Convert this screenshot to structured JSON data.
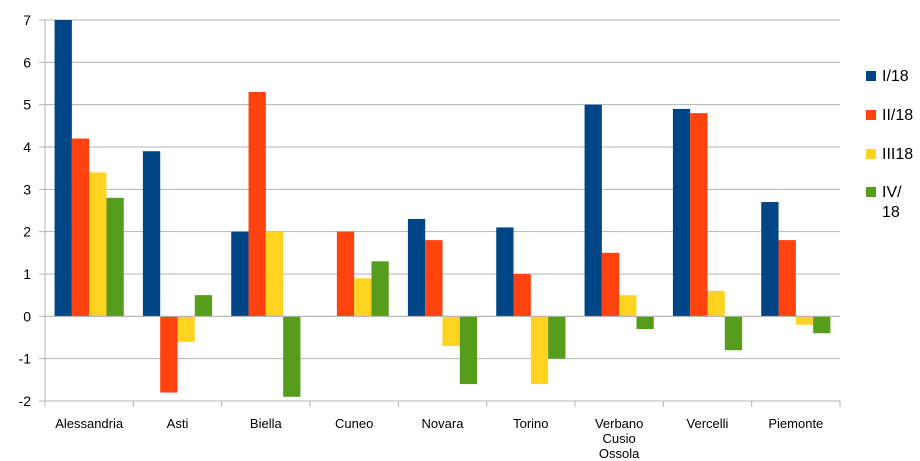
{
  "chart_data": {
    "type": "bar",
    "categories": [
      "Alessandria",
      "Asti",
      "Biella",
      "Cuneo",
      "Novara",
      "Torino",
      "Verbano Cusio Ossola",
      "Vercelli",
      "Piemonte"
    ],
    "series": [
      {
        "name": "I/18",
        "color": "#004586",
        "values": [
          7.0,
          3.9,
          2.0,
          0.0,
          2.3,
          2.1,
          5.0,
          4.9,
          2.7
        ]
      },
      {
        "name": "II/18",
        "color": "#ff420e",
        "values": [
          4.2,
          -1.8,
          5.3,
          2.0,
          1.8,
          1.0,
          1.5,
          4.8,
          1.8
        ]
      },
      {
        "name": "III18",
        "color": "#ffd320",
        "values": [
          3.4,
          -0.6,
          2.0,
          0.9,
          -0.7,
          -1.6,
          0.5,
          0.6,
          -0.2
        ]
      },
      {
        "name": "IV/ 18",
        "color": "#579d1c",
        "values": [
          2.8,
          0.5,
          -1.9,
          1.3,
          -1.6,
          -1.0,
          -0.3,
          -0.8,
          -0.4
        ]
      }
    ],
    "ylim": [
      -2,
      7
    ],
    "yticks": [
      -2,
      -1,
      0,
      1,
      2,
      3,
      4,
      5,
      6,
      7
    ],
    "grid": true,
    "legend": "right"
  }
}
